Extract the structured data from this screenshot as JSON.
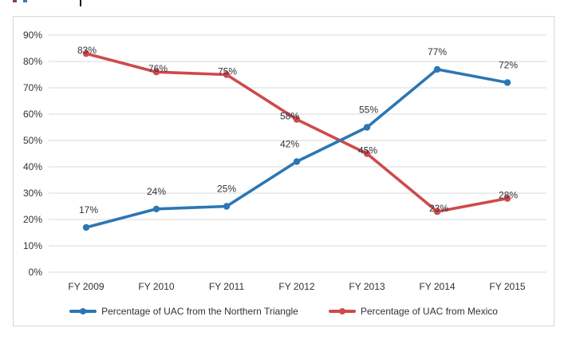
{
  "chart_data": {
    "type": "line",
    "title": "",
    "xlabel": "",
    "ylabel": "",
    "categories": [
      "FY 2009",
      "FY 2010",
      "FY 2011",
      "FY 2012",
      "FY 2013",
      "FY 2014",
      "FY 2015"
    ],
    "series": [
      {
        "name": "Percentage of UAC from the Northern Triangle",
        "color": "#2b77b5",
        "values": [
          17,
          24,
          25,
          42,
          55,
          77,
          72
        ],
        "labels": [
          "17%",
          "24%",
          "25%",
          "42%",
          "55%",
          "77%",
          "72%"
        ],
        "label_position": "above",
        "label_dx": [
          3,
          0,
          0,
          -9,
          2,
          0,
          1
        ]
      },
      {
        "name": "Percentage of UAC from Mexico",
        "color": "#ce4a4c",
        "values": [
          83,
          76,
          75,
          58,
          45,
          23,
          28
        ],
        "labels": [
          "83%",
          "76%",
          "75%",
          "58%",
          "45%",
          "23%",
          "28%"
        ],
        "label_position": "center",
        "label_dx": [
          1,
          2,
          1,
          -9,
          1,
          2,
          1
        ]
      }
    ],
    "y_ticks": [
      "0%",
      "10%",
      "20%",
      "30%",
      "40%",
      "50%",
      "60%",
      "70%",
      "80%",
      "90%"
    ],
    "ylim": [
      0,
      90
    ],
    "grid": true,
    "gridline_color": "#d9d9d9",
    "text_color": "#31313b",
    "legend_position": "bottom",
    "data_labels": true
  }
}
